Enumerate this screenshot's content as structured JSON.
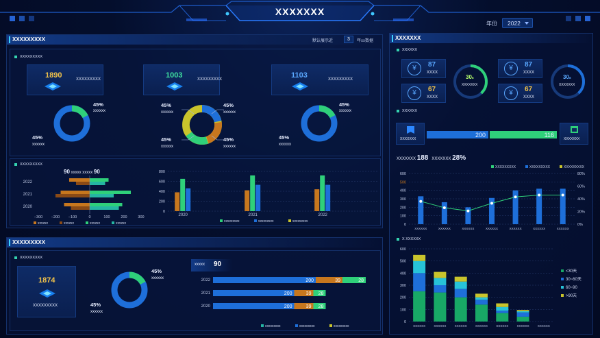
{
  "header": {
    "title": "XXXXXXX",
    "year_label": "年份",
    "year_value": "2022"
  },
  "left_top": {
    "title": "XXXXXXXXX",
    "range_prefix": "默认展示近",
    "range_value": "3",
    "range_suffix": "年xx数据",
    "section1": "XXXXXXXXX",
    "kpis": [
      {
        "value": "1890",
        "label": "XXXXXXXXX",
        "color": "#f2c34a"
      },
      {
        "value": "1003",
        "label": "XXXXXXXXX",
        "color": "#3fe0a0"
      },
      {
        "value": "1103",
        "label": "XXXXXXXXX",
        "color": "#5aa8ff"
      }
    ],
    "donut1": {
      "pct": "45%",
      "name": "xxxxxx",
      "pct2": "45%",
      "name2": "xxxxxx"
    },
    "donut2": {
      "tl_pct": "45%",
      "tl_name": "xxxxxx",
      "tr_pct": "45%",
      "tr_name": "xxxxxx",
      "bl_pct": "45%",
      "bl_name": "xxxxxx",
      "br_pct": "45%",
      "br_name": "xxxxxx"
    },
    "donut3": {
      "pct": "45%",
      "name": "xxxxxx",
      "pct2": "45%",
      "name2": "xxxxxx"
    },
    "section2": "XXXXXXXXX",
    "hbar_head": {
      "v1": "90",
      "t1": "xxxxx",
      "t2": "xxxxx",
      "v2": "90"
    },
    "hbar_years": [
      "2022",
      "2021",
      "2020"
    ],
    "hbar_xticks": [
      "−300",
      "−200",
      "−100",
      "0",
      "100",
      "200",
      "300"
    ],
    "hbar_legend": [
      "xxxxxx",
      "xxxxxx",
      "xxxxxx",
      "xxxxxx"
    ],
    "vbar_yticks": [
      "0",
      "200",
      "400",
      "600",
      "800"
    ],
    "vbar_legend": [
      "xxxxxxxxx",
      "xxxxxxxxx",
      "xxxxxxxxx"
    ]
  },
  "left_bottom": {
    "title": "XXXXXXXXX",
    "section": "XXXXXXXXX",
    "kpi_value": "1874",
    "kpi_label": "XXXXXXXXX",
    "donut": {
      "pct": "45%",
      "name": "xxxxxx",
      "pct2": "45%",
      "name2": "xxxxxx"
    },
    "bar_head_label": "xxxxx",
    "bar_head_value": "90",
    "rows": [
      {
        "year": "2022",
        "a": "200",
        "b": "39",
        "c": "28"
      },
      {
        "year": "2021",
        "a": "200",
        "b": "39",
        "c": "28"
      },
      {
        "year": "2020",
        "a": "200",
        "b": "39",
        "c": "28"
      }
    ],
    "legend": [
      "xxxxxxxxx",
      "xxxxxxxxx",
      "xxxxxxxxx"
    ]
  },
  "right": {
    "title": "XXXXXXX",
    "sub1": "XXXXXX",
    "stats": [
      {
        "value": "87",
        "label": "XXXX"
      },
      {
        "value": "67",
        "label": "XXXX"
      },
      {
        "value": "87",
        "label": "XXXX"
      },
      {
        "value": "67",
        "label": "XXXX"
      }
    ],
    "gauges": [
      {
        "value": "30",
        "unit": "s",
        "label": "XXXXXXX"
      },
      {
        "value": "30",
        "unit": "s",
        "label": "XXXXXXX"
      }
    ],
    "sub2": "XXXXXX",
    "compare": {
      "left_label": "XXXXXXX",
      "right_label": "XXXXXXX",
      "left_value": "200",
      "right_value": "116"
    },
    "line_head": {
      "t1": "XXXXXXX",
      "v1": "188",
      "t2": "XXXXXXX",
      "v2": "28%"
    },
    "line_legend": [
      "XXXXXXXXX",
      "XXXXXXXXX",
      "XXXXXXXXX"
    ],
    "stack_title": "X XXXXXX",
    "stack_legend": [
      "<30天",
      "30~60天",
      "60~90",
      ">90天"
    ],
    "xcats": [
      "XXXXXX",
      "XXXXXX",
      "XXXXXX",
      "XXXXXX",
      "XXXXXX",
      "XXXXXX",
      "XXXXXX"
    ]
  },
  "colors": {
    "blue": "#1e6fd9",
    "green": "#2fd07a",
    "orange": "#c7771e",
    "yellow": "#c9c42c",
    "teal": "#25b6a3"
  },
  "chart_data": [
    {
      "type": "bar",
      "title": "",
      "categories": [
        "2022",
        "2021",
        "2020"
      ],
      "series": [
        {
          "values": [
            -120,
            -170,
            -150
          ]
        },
        {
          "values": [
            -80,
            -200,
            -110
          ]
        },
        {
          "values": [
            110,
            240,
            190
          ]
        },
        {
          "values": [
            90,
            140,
            170
          ]
        }
      ],
      "xlim": [
        -300,
        300
      ]
    },
    {
      "type": "bar",
      "categories": [
        "2020",
        "2021",
        "2022"
      ],
      "series": [
        {
          "values": [
            380,
            420,
            440
          ]
        },
        {
          "values": [
            650,
            720,
            720
          ]
        },
        {
          "values": [
            460,
            530,
            530
          ]
        }
      ],
      "ylim": [
        0,
        800
      ]
    },
    {
      "type": "bar",
      "categories": [
        "2022",
        "2021",
        "2020"
      ],
      "series": [
        {
          "values": [
            200,
            200,
            200
          ]
        },
        {
          "values": [
            39,
            39,
            39
          ]
        },
        {
          "values": [
            28,
            28,
            28
          ]
        }
      ]
    },
    {
      "type": "line",
      "categories": [
        "XXXXXX",
        "XXXXXX",
        "XXXXXX",
        "XXXXXX",
        "XXXXXX",
        "XXXXXX",
        "XXXXXX"
      ],
      "series": [
        {
          "values": [
            330,
            260,
            200,
            310,
            400,
            420,
            420
          ]
        },
        {
          "values": [
            36,
            26,
            21,
            33,
            43,
            46,
            46
          ]
        }
      ],
      "ylim": [
        0,
        600
      ],
      "y2lim": [
        0,
        80
      ],
      "yticks": [
        0,
        100,
        200,
        300,
        400,
        500,
        600
      ],
      "y2ticks": [
        "0%",
        "20%",
        "40%",
        "60%",
        "80%"
      ]
    },
    {
      "type": "bar",
      "categories": [
        "XXXXXX",
        "XXXXXX",
        "XXXXXX",
        "XXXXXX",
        "XXXXXX",
        "XXXXXX",
        "XXXXXX"
      ],
      "series": [
        {
          "name": "<30天",
          "values": [
            250,
            240,
            200,
            140,
            70,
            40,
            0
          ]
        },
        {
          "name": "30~60天",
          "values": [
            150,
            60,
            70,
            40,
            20,
            35,
            0
          ]
        },
        {
          "name": "60~90",
          "values": [
            100,
            60,
            60,
            20,
            30,
            10,
            0
          ]
        },
        {
          "name": ">90天",
          "values": [
            50,
            50,
            40,
            30,
            30,
            10,
            0
          ]
        }
      ],
      "ylim": [
        0,
        600
      ],
      "yticks": [
        0,
        100,
        200,
        300,
        400,
        500,
        600
      ]
    }
  ]
}
